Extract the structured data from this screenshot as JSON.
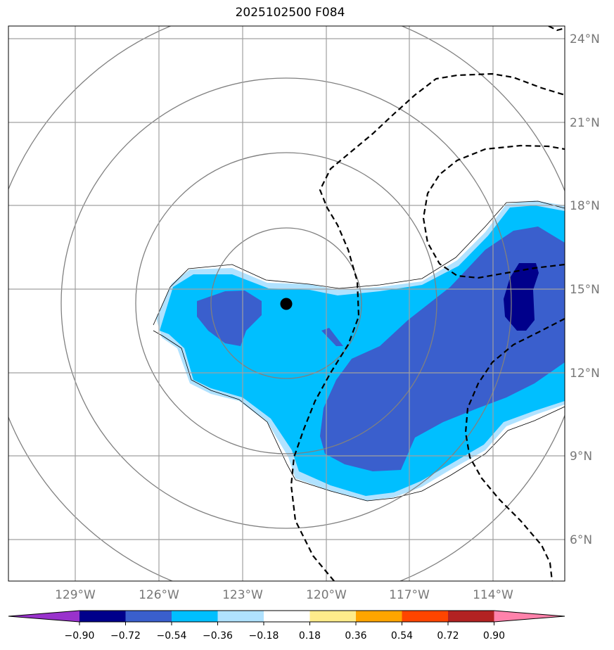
{
  "title": "2025102500 F084",
  "map": {
    "lon_labels": [
      "129°W",
      "126°W",
      "123°W",
      "120°W",
      "117°W",
      "114°W"
    ],
    "lat_labels": [
      "24°N",
      "21°N",
      "18°N",
      "15°N",
      "12°N",
      "9°N",
      "6°N"
    ],
    "center_marker": {
      "lon": -121.5,
      "lat": 14.5
    },
    "ring_spacing": "concentric range rings around center",
    "contour_style": "dashed black"
  },
  "colorbar": {
    "ticks": [
      "−0.90",
      "−0.72",
      "−0.54",
      "−0.36",
      "−0.18",
      "0.18",
      "0.36",
      "0.54",
      "0.72",
      "0.90"
    ],
    "colors": [
      "#9932cc",
      "#00008b",
      "#3a5fcd",
      "#00bfff",
      "#b0e2ff",
      "#ffffff",
      "#ffec8b",
      "#ffa500",
      "#ff4500",
      "#b22222",
      "#ff82ab"
    ],
    "extend": "both"
  }
}
